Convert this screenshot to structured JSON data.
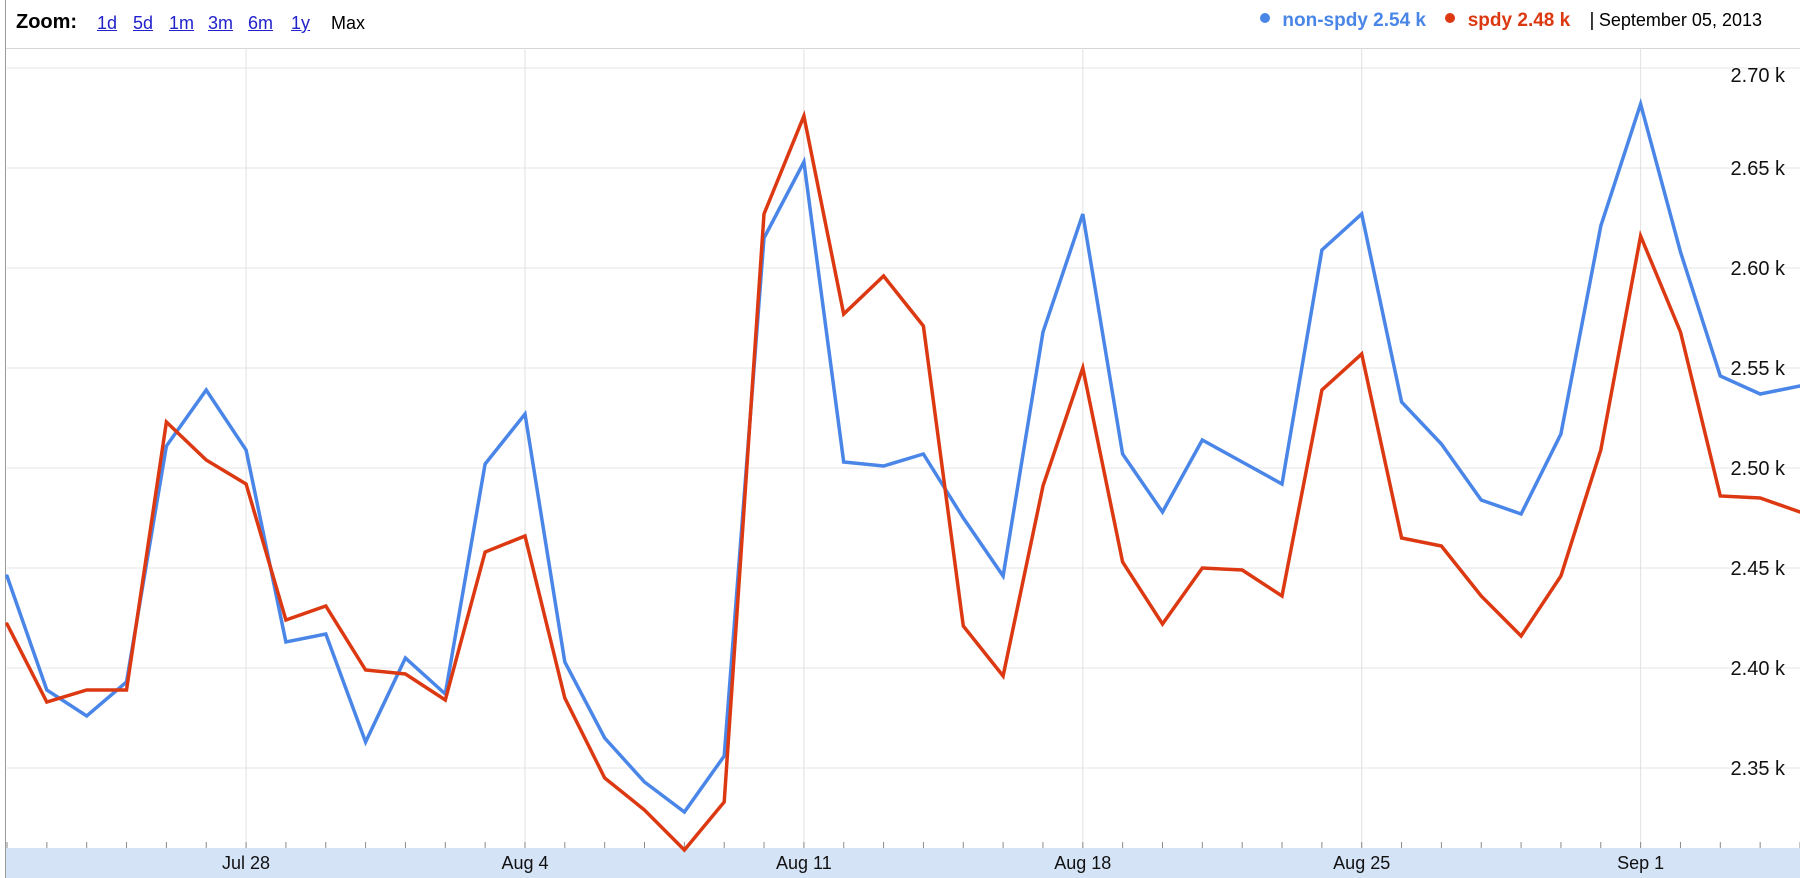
{
  "toolbar": {
    "zoom_label": "Zoom:",
    "zoom_options": [
      "1d",
      "5d",
      "1m",
      "3m",
      "6m",
      "1y"
    ],
    "zoom_selected": "Max"
  },
  "legend": {
    "series": [
      {
        "name": "non-spdy",
        "value": "2.54 k",
        "color": "#4a86e8"
      },
      {
        "name": "spdy",
        "value": "2.48 k",
        "color": "#dc3912"
      }
    ],
    "separator": "|",
    "date": "September 05, 2013"
  },
  "chart_data": {
    "type": "line",
    "x_start": "2013-07-22",
    "x_step_days": 1,
    "x_end": "2013-09-05",
    "x_ticks": [
      "Jul 28",
      "Aug 4",
      "Aug 11",
      "Aug 18",
      "Aug 25",
      "Sep 1"
    ],
    "y_ticks": [
      "2.35 k",
      "2.40 k",
      "2.45 k",
      "2.50 k",
      "2.55 k",
      "2.60 k",
      "2.65 k",
      "2.70 k"
    ],
    "ylim": [
      2.31,
      2.71
    ],
    "y_unit": "k",
    "grid": true,
    "series": [
      {
        "name": "non-spdy",
        "color": "#4a86e8",
        "values": [
          2.446,
          2.389,
          2.376,
          2.393,
          2.511,
          2.539,
          2.509,
          2.413,
          2.417,
          2.363,
          2.405,
          2.387,
          2.502,
          2.527,
          2.403,
          2.365,
          2.343,
          2.328,
          2.356,
          2.615,
          2.653,
          2.503,
          2.501,
          2.507,
          2.475,
          2.446,
          2.568,
          2.627,
          2.507,
          2.478,
          2.514,
          2.503,
          2.492,
          2.609,
          2.627,
          2.533,
          2.512,
          2.484,
          2.477,
          2.517,
          2.621,
          2.682,
          2.608,
          2.546,
          2.537,
          2.541
        ]
      },
      {
        "name": "spdy",
        "color": "#dc3912",
        "values": [
          2.422,
          2.383,
          2.389,
          2.389,
          2.523,
          2.504,
          2.492,
          2.424,
          2.431,
          2.399,
          2.397,
          2.384,
          2.458,
          2.466,
          2.385,
          2.345,
          2.329,
          2.309,
          2.333,
          2.627,
          2.676,
          2.577,
          2.596,
          2.571,
          2.421,
          2.396,
          2.491,
          2.55,
          2.453,
          2.422,
          2.45,
          2.449,
          2.436,
          2.539,
          2.557,
          2.465,
          2.461,
          2.436,
          2.416,
          2.446,
          2.509,
          2.616,
          2.568,
          2.486,
          2.485,
          2.478
        ]
      }
    ]
  }
}
